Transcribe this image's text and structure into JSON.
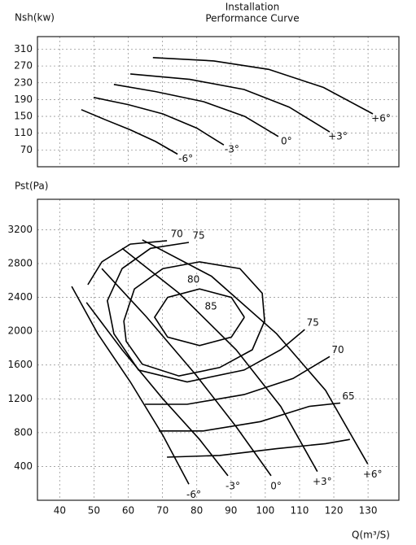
{
  "chart_data": [
    {
      "type": "line",
      "title": "Installation",
      "subtitle": "Performance Curve",
      "ylabel": "Nsh(kw)",
      "xlim": [
        33.5,
        139
      ],
      "ylim": [
        30,
        340
      ],
      "yticks": [
        70,
        110,
        150,
        190,
        230,
        270,
        310
      ],
      "grid": true,
      "series": [
        {
          "name": "-6°",
          "color": "#000000",
          "x": [
            46.3,
            53,
            60.6,
            68,
            74.4
          ],
          "values": [
            166,
            143,
            118,
            90,
            60
          ]
        },
        {
          "name": "-3°",
          "color": "#000000",
          "x": [
            49.9,
            60,
            70.1,
            80,
            87.9
          ],
          "values": [
            195,
            178,
            156,
            122,
            82
          ]
        },
        {
          "name": "0°",
          "color": "#000000",
          "x": [
            55.8,
            68,
            82,
            94,
            103.8
          ],
          "values": [
            226,
            209,
            185,
            150,
            102
          ]
        },
        {
          "name": "+3°",
          "color": "#000000",
          "x": [
            60.6,
            78,
            93.8,
            107,
            118.8
          ],
          "values": [
            251,
            238,
            214,
            172,
            113
          ]
        },
        {
          "name": "+6°",
          "color": "#000000",
          "x": [
            67.2,
            85,
            101,
            117,
            131.4
          ],
          "values": [
            290,
            282,
            262,
            219,
            156
          ]
        }
      ]
    },
    {
      "type": "line",
      "ylabel": "Pst(Pa)",
      "xlabel": "Q(m³/S)",
      "xlim": [
        33.5,
        139
      ],
      "ylim": [
        0,
        3560
      ],
      "xticks": [
        40,
        50,
        60,
        70,
        80,
        90,
        100,
        110,
        120,
        130
      ],
      "yticks": [
        400,
        800,
        1200,
        1600,
        2000,
        2400,
        2800,
        3200
      ],
      "grid": true,
      "series": [
        {
          "name": "-6°",
          "color": "#000000",
          "x": [
            43.5,
            51.1,
            60.6,
            70.1,
            77.7
          ],
          "values": [
            2530,
            1970,
            1400,
            770,
            190
          ]
        },
        {
          "name": "-3°",
          "color": "#000000",
          "x": [
            47.8,
            58.2,
            70.1,
            80.8,
            89.1
          ],
          "values": [
            2340,
            1780,
            1200,
            720,
            290
          ]
        },
        {
          "name": "0°",
          "color": "#000000",
          "x": [
            52.3,
            65.3,
            79.6,
            91.5,
            101.7
          ],
          "values": [
            2740,
            2170,
            1490,
            870,
            290
          ]
        },
        {
          "name": "+3°",
          "color": "#000000",
          "x": [
            58.2,
            74.8,
            91.5,
            104.5,
            115.2
          ],
          "values": [
            2980,
            2450,
            1780,
            1110,
            340
          ]
        },
        {
          "name": "+6°",
          "color": "#000000",
          "x": [
            64.1,
            84.3,
            103.3,
            117.6,
            129.9
          ],
          "values": [
            3080,
            2650,
            1970,
            1300,
            430
          ]
        }
      ],
      "contours": [
        {
          "name": "85",
          "color": "#000000",
          "x": [
            93.9,
            90.1,
            80.8,
            71.5,
            67.7,
            71.5,
            80.8,
            90.1,
            93.9
          ],
          "values": [
            2165,
            2400,
            2500,
            2400,
            2165,
            1930,
            1830,
            1930,
            2165
          ]
        },
        {
          "name": "80",
          "color": "#000000",
          "x": [
            58.7,
            61.8,
            70.1,
            80.8,
            92.6,
            99.1,
            99.8,
            96.2,
            86.7,
            74.8,
            64.1,
            59.4,
            58.7
          ],
          "values": [
            2120,
            2500,
            2740,
            2820,
            2740,
            2450,
            2120,
            1780,
            1570,
            1470,
            1610,
            1880,
            2120
          ]
        },
        {
          "name": "75",
          "color": "#000000",
          "x": [
            77.7,
            66.5,
            58.2,
            53.9,
            55.8,
            63,
            77.2,
            93.8,
            104.5,
            111.5
          ],
          "values": [
            3050,
            2980,
            2740,
            2360,
            1970,
            1540,
            1400,
            1540,
            1780,
            2020
          ]
        },
        {
          "name": "70",
          "color": "#000000",
          "x": [
            71.3,
            60.6,
            52.3,
            48.2,
            null,
            64.9,
            77.2,
            93.8,
            108.1,
            118.8
          ],
          "values": [
            3070,
            3030,
            2820,
            2550,
            null,
            1135,
            1135,
            1250,
            1440,
            1700
          ]
        },
        {
          "name": "65",
          "color": "#000000",
          "x": [
            68.9,
            81.9,
            98.6,
            112.8,
            121.9
          ],
          "values": [
            820,
            820,
            930,
            1110,
            1150
          ]
        },
        {
          "color": "#000000",
          "x": [
            71.3,
            86.7,
            103.3,
            117.6,
            124.7
          ],
          "values": [
            510,
            530,
            610,
            670,
            720
          ]
        }
      ]
    }
  ]
}
